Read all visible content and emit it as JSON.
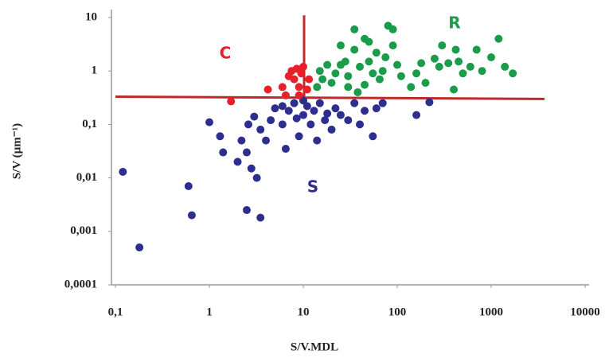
{
  "chart_data": {
    "type": "scatter",
    "x_label": "S/V.MDL",
    "y_label": "S/V (µm⁻¹)",
    "log_x": true,
    "log_y": true,
    "xlim": [
      0.1,
      10000
    ],
    "ylim": [
      0.0001,
      10
    ],
    "xticks": [
      {
        "value": 0.1,
        "label": "0,1"
      },
      1,
      10,
      100,
      1000,
      10000
    ],
    "yticks": [
      {
        "value": 0.0001,
        "label": "0,0001"
      },
      {
        "value": 0.001,
        "label": "0,001"
      },
      {
        "value": 0.01,
        "label": "0,01"
      },
      {
        "value": 0.1,
        "label": "0,1"
      },
      1,
      10
    ],
    "series": [
      {
        "name": "S",
        "color": "#2e2e8e",
        "x": [
          0.12,
          0.18,
          0.6,
          0.65,
          2.5,
          3.5,
          1.0,
          1.3,
          1.4,
          2.0,
          2.2,
          2.5,
          2.8,
          3.2,
          2.6,
          3,
          3.5,
          4,
          4.5,
          5,
          6,
          6.5,
          7,
          8,
          8.5,
          9,
          10,
          11,
          12,
          13,
          14,
          15,
          17,
          20,
          22,
          25,
          30,
          35,
          40,
          45,
          55,
          60,
          70,
          160,
          220,
          10,
          6,
          18
        ],
        "y": [
          0.013,
          0.0005,
          0.007,
          0.002,
          0.0025,
          0.0018,
          0.11,
          0.06,
          0.03,
          0.02,
          0.05,
          0.03,
          0.015,
          0.01,
          0.1,
          0.14,
          0.08,
          0.05,
          0.12,
          0.2,
          0.1,
          0.035,
          0.18,
          0.25,
          0.13,
          0.06,
          0.15,
          0.22,
          0.1,
          0.18,
          0.05,
          0.25,
          0.12,
          0.08,
          0.2,
          0.15,
          0.12,
          0.25,
          0.1,
          0.18,
          0.06,
          0.2,
          0.25,
          0.15,
          0.26,
          0.28,
          0.22,
          0.16
        ]
      },
      {
        "name": "C",
        "color": "#e8202a",
        "x": [
          1.7,
          4.2,
          6,
          7,
          7.5,
          8,
          8.5,
          9,
          9.5,
          10,
          11,
          6.5,
          11.5,
          9
        ],
        "y": [
          0.27,
          0.45,
          0.5,
          0.8,
          1.0,
          0.7,
          1.1,
          0.5,
          0.9,
          1.2,
          0.45,
          0.35,
          0.7,
          0.35
        ]
      },
      {
        "name": "R",
        "color": "#1a9c4a",
        "x": [
          14,
          15,
          16,
          18,
          20,
          22,
          25,
          28,
          30,
          35,
          35,
          40,
          45,
          50,
          55,
          60,
          65,
          70,
          75,
          80,
          90,
          90,
          100,
          110,
          140,
          160,
          180,
          200,
          250,
          280,
          300,
          350,
          400,
          420,
          450,
          500,
          600,
          700,
          800,
          1000,
          1200,
          1400,
          1700,
          30,
          50,
          45,
          25,
          38
        ],
        "y": [
          0.5,
          1.0,
          0.7,
          1.3,
          0.6,
          0.9,
          3,
          1.5,
          0.8,
          2.5,
          6,
          1.2,
          0.55,
          1.5,
          0.9,
          2.2,
          0.7,
          1.0,
          1.8,
          7,
          6,
          3,
          1.3,
          0.8,
          0.5,
          0.9,
          1.4,
          0.6,
          1.7,
          1.2,
          3,
          1.4,
          0.45,
          2.5,
          1.5,
          0.9,
          1.2,
          2.5,
          1.0,
          1.8,
          4,
          1.2,
          0.9,
          0.5,
          3.5,
          4,
          1.3,
          0.4
        ]
      }
    ],
    "reference_lines": [
      {
        "color": "#c0282a",
        "x": [
          0.1,
          3700
        ],
        "y": [
          0.33,
          0.3
        ]
      },
      {
        "color": "#c0282a",
        "x": [
          10.2,
          10.2
        ],
        "y": [
          11,
          0.33
        ]
      }
    ]
  }
}
